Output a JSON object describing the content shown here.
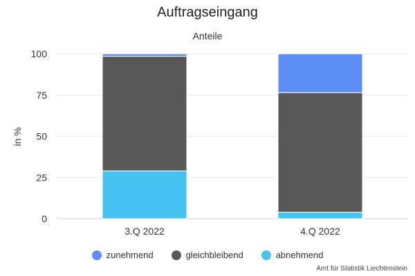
{
  "chart_data": {
    "type": "bar",
    "stacked": true,
    "title": "Auftragseingang",
    "subtitle": "Anteile",
    "ylabel": "in %",
    "xlabel": "",
    "categories": [
      "3.Q 2022",
      "4.Q 2022"
    ],
    "ylim": [
      0,
      100
    ],
    "yticks": [
      0,
      25,
      50,
      75,
      100
    ],
    "grid": true,
    "legend_position": "bottom",
    "series": [
      {
        "name": "abnehmend",
        "color": "#45c2f0",
        "values": [
          29,
          4
        ]
      },
      {
        "name": "gleichbleibend",
        "color": "#58585a",
        "values": [
          69.5,
          72.5
        ]
      },
      {
        "name": "zunehmend",
        "color": "#5e8ef5",
        "values": [
          1.5,
          23.5
        ]
      }
    ]
  },
  "legend": [
    {
      "name": "zunehmend",
      "color": "#5e8ef5"
    },
    {
      "name": "gleichbleibend",
      "color": "#58585a"
    },
    {
      "name": "abnehmend",
      "color": "#45c2f0"
    }
  ],
  "credits": "Amt für Statistik Liechtenstein"
}
